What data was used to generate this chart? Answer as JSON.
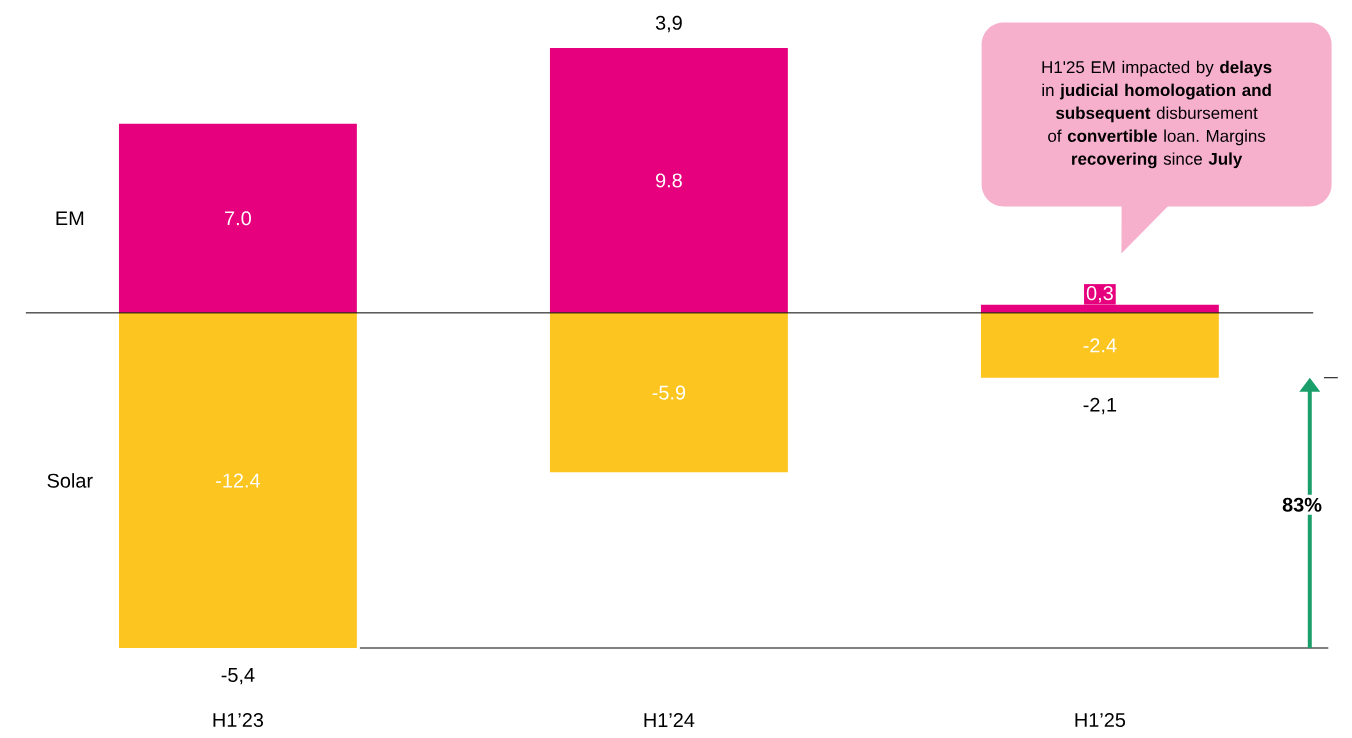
{
  "chart_data": {
    "type": "bar",
    "categories": [
      "H1’23",
      "H1’24",
      "H1’25"
    ],
    "stacked": true,
    "series": [
      {
        "name": "EM",
        "color": "#e6007e",
        "values": [
          7.0,
          9.8,
          0.3
        ],
        "value_labels": [
          "7.0",
          "9.8",
          "0,3"
        ]
      },
      {
        "name": "Solar",
        "color": "#fdc520",
        "values": [
          -12.4,
          -5.9,
          -2.4
        ],
        "value_labels": [
          "-12.4",
          "-5.9",
          "-2.4"
        ]
      }
    ],
    "totals": [
      "-5,4",
      "3,9",
      "-2,1"
    ],
    "annotations": [
      "H1'25 EM impacted by **delays** in **judicial homologation and subsequent** disbursement of **convertible** loan. Margins **recovering** since **July**",
      "83%"
    ]
  }
}
